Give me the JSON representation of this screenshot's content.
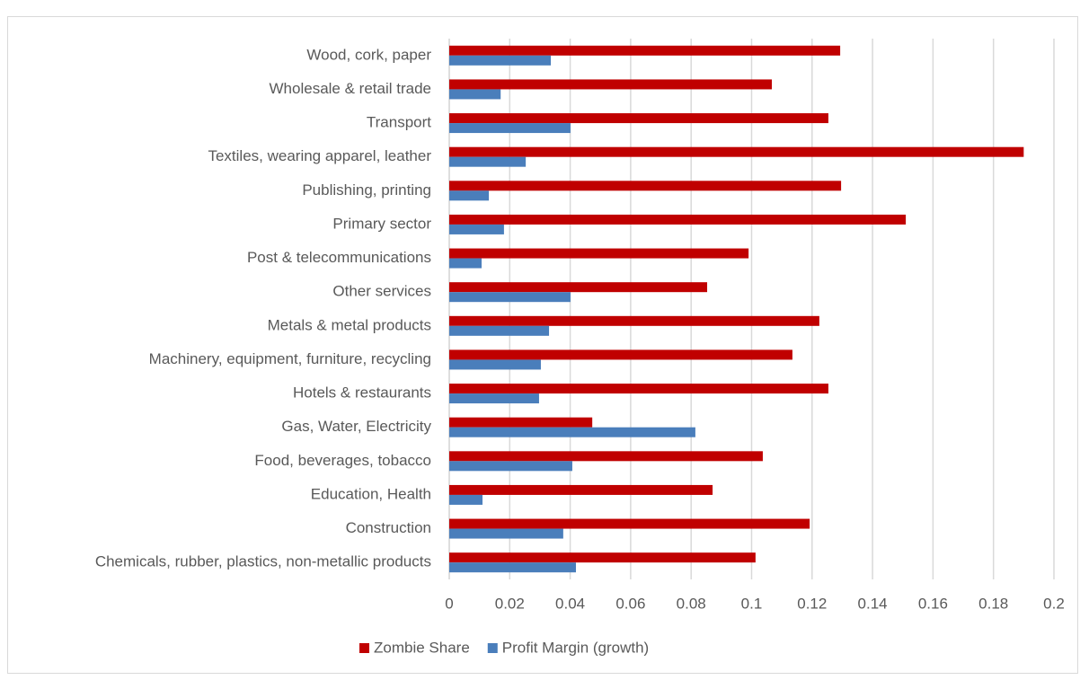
{
  "chart_data": {
    "type": "hbar",
    "categories": [
      "Wood, cork, paper",
      "Wholesale & retail trade",
      "Transport",
      "Textiles, wearing apparel, leather",
      "Publishing, printing",
      "Primary sector",
      "Post & telecommunications",
      "Other services",
      "Metals & metal products",
      "Machinery, equipment, furniture, recycling",
      "Hotels & restaurants",
      "Gas, Water, Electricity",
      "Food, beverages, tobacco",
      "Education, Health",
      "Construction",
      "Chemicals, rubber, plastics, non-metallic products"
    ],
    "series": [
      {
        "name": "Zombie Share",
        "color": "#c00000",
        "values": [
          0.1293,
          0.1067,
          0.1254,
          0.19,
          0.1296,
          0.151,
          0.099,
          0.0853,
          0.1224,
          0.1135,
          0.1254,
          0.0473,
          0.1037,
          0.0871,
          0.1192,
          0.1013
        ]
      },
      {
        "name": "Profit Margin (growth)",
        "color": "#4a7ebb",
        "values": [
          0.0336,
          0.017,
          0.0401,
          0.0253,
          0.0131,
          0.0181,
          0.0107,
          0.0401,
          0.033,
          0.0303,
          0.0297,
          0.0814,
          0.0407,
          0.011,
          0.0377,
          0.0419
        ]
      }
    ],
    "xlim": [
      0,
      0.2
    ],
    "xticks": [
      0,
      0.02,
      0.04,
      0.06,
      0.08,
      0.1,
      0.12,
      0.14,
      0.16,
      0.18,
      0.2
    ],
    "grid": true,
    "legend": "bottom"
  }
}
